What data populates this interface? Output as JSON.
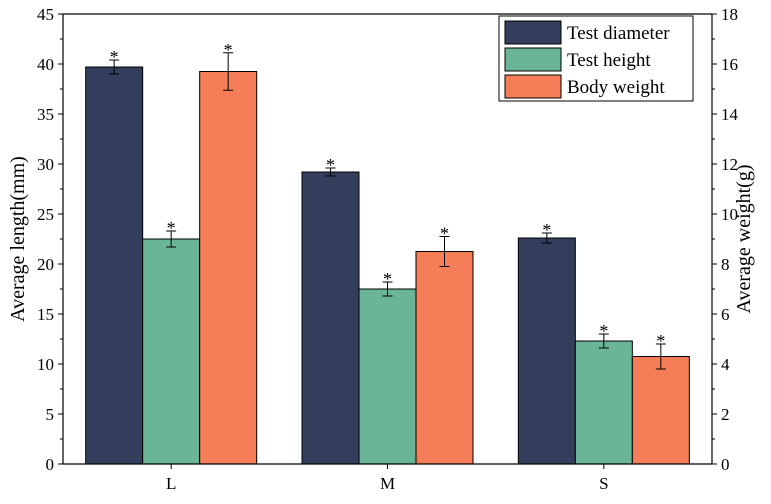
{
  "chart_data": {
    "type": "bar",
    "categories": [
      "L",
      "M",
      "S"
    ],
    "left_axis": {
      "label": "Average length(mm)",
      "ylim": [
        0,
        45
      ],
      "ticks": [
        0,
        5,
        10,
        15,
        20,
        25,
        30,
        35,
        40,
        45
      ]
    },
    "right_axis": {
      "label": "Average weight(g)",
      "ylim": [
        0,
        18
      ],
      "ticks": [
        0,
        2,
        4,
        6,
        8,
        10,
        12,
        14,
        16,
        18
      ]
    },
    "series": [
      {
        "name": "Test diameter",
        "axis": "left",
        "color": "#323e5c",
        "values": [
          39.7,
          29.2,
          22.6
        ],
        "errors": [
          0.7,
          0.4,
          0.5
        ]
      },
      {
        "name": "Test height",
        "axis": "left",
        "color": "#6ab597",
        "values": [
          22.5,
          17.5,
          12.3
        ],
        "errors": [
          0.8,
          0.7,
          0.7
        ]
      },
      {
        "name": "Body weight",
        "axis": "right",
        "color": "#f57d57",
        "values": [
          15.7,
          8.5,
          4.3
        ],
        "errors": [
          0.75,
          0.6,
          0.5
        ]
      }
    ],
    "significance_marker": "*",
    "legend_position": "top-right"
  }
}
